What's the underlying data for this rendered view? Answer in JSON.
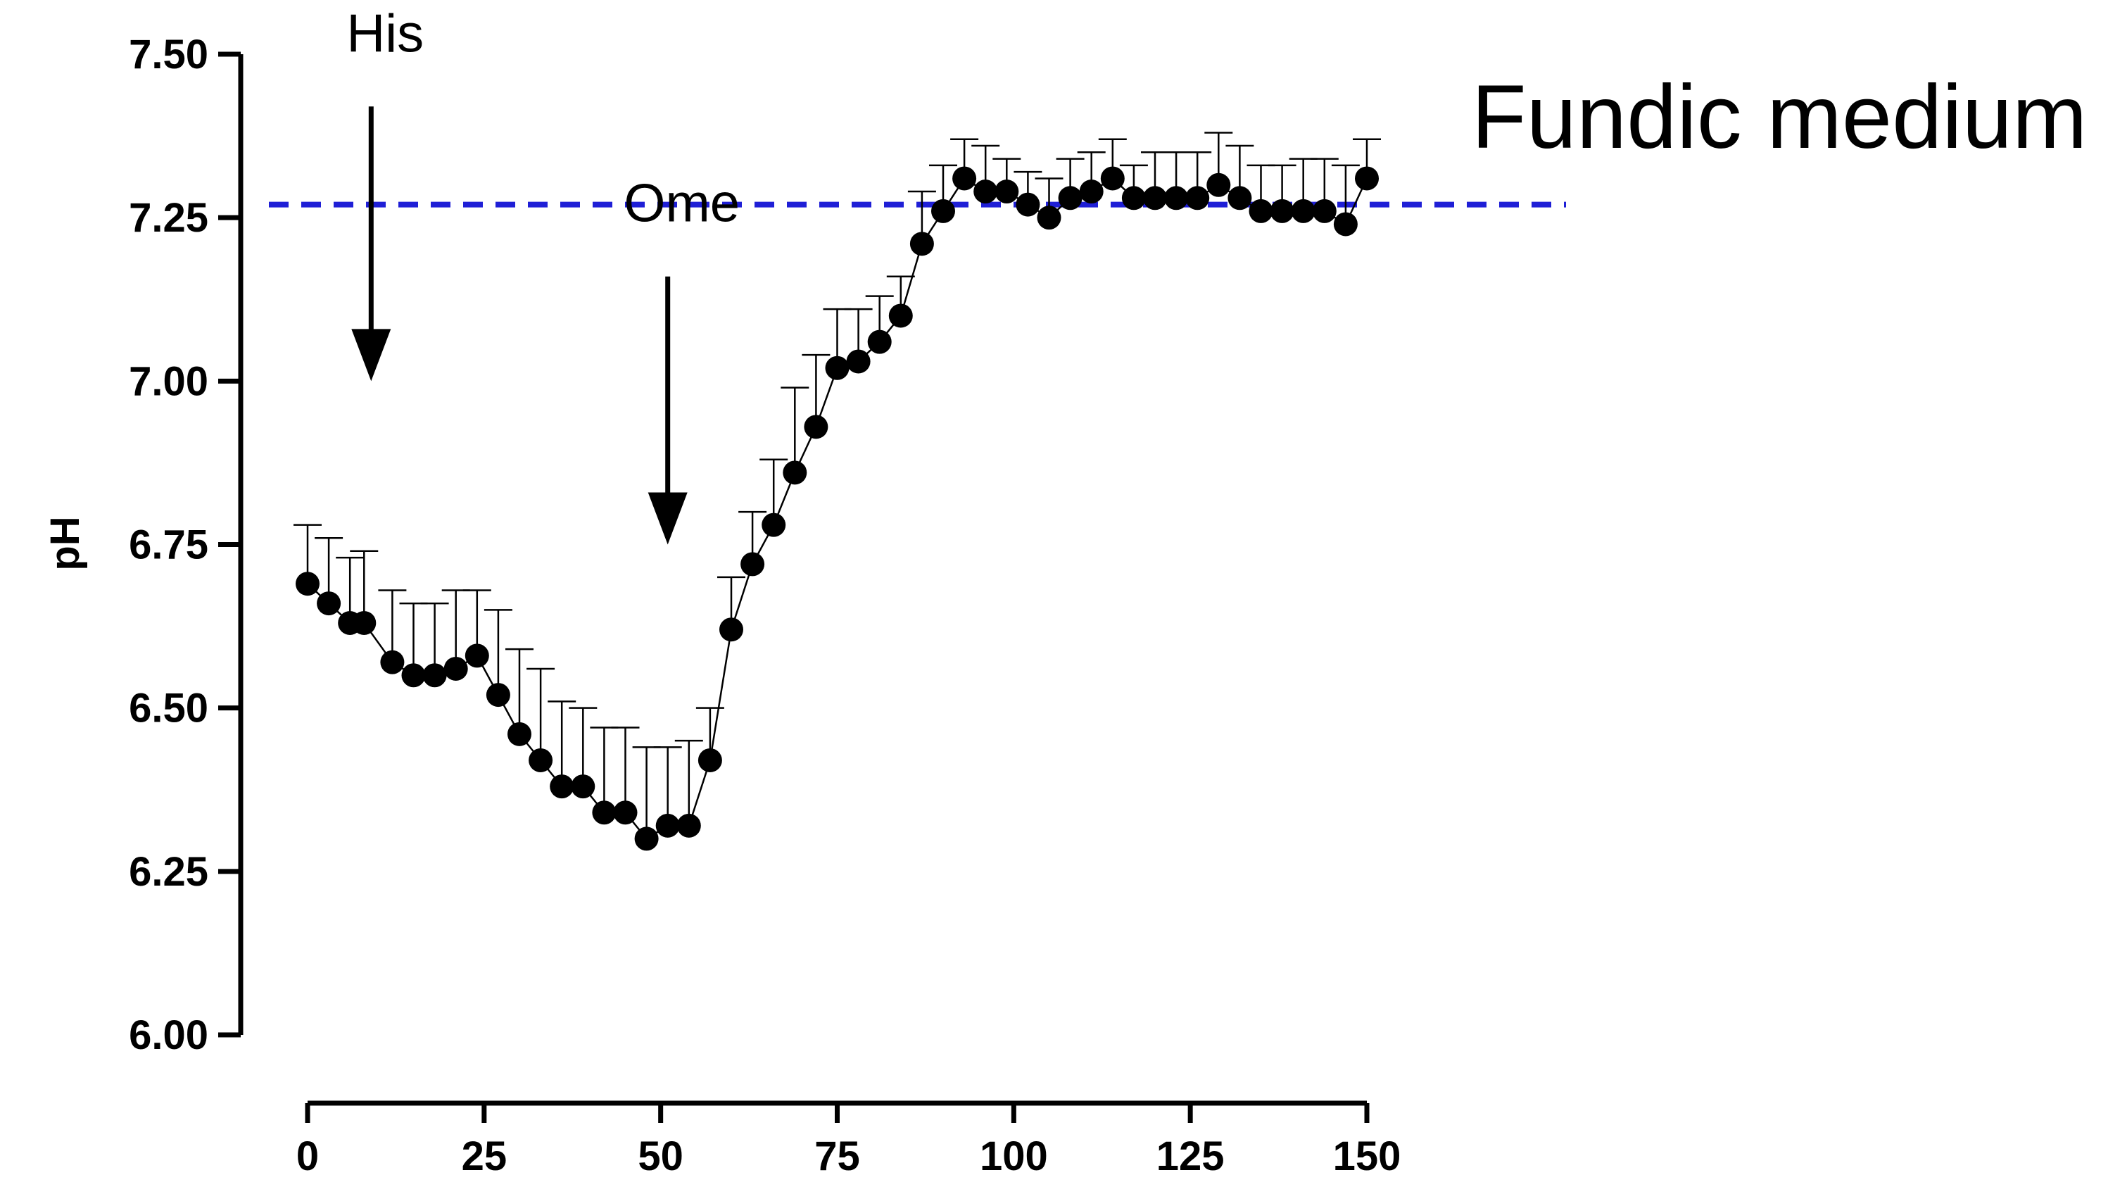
{
  "chart_data": {
    "type": "scatter",
    "title": "Fundic medium",
    "xlabel": "",
    "ylabel": "pH",
    "xlim": [
      0,
      150
    ],
    "ylim": [
      6.0,
      7.5
    ],
    "xticks": [
      0,
      25,
      50,
      75,
      100,
      125,
      150
    ],
    "xtick_labels": [
      "0",
      "25",
      "50",
      "75",
      "100",
      "125",
      "150"
    ],
    "yticks": [
      6.0,
      6.25,
      6.5,
      6.75,
      7.0,
      7.25,
      7.5
    ],
    "ytick_labels": [
      "6.00",
      "6.25",
      "6.50",
      "6.75",
      "7.00",
      "7.25",
      "7.50"
    ],
    "grid": false,
    "reference_line": {
      "y": 7.27,
      "style": "dashed",
      "color": "#1f1fd6"
    },
    "annotations": [
      {
        "text": "His",
        "x": 9,
        "arrow_from_y": 7.42,
        "arrow_to_y": 7.0
      },
      {
        "text": "Ome",
        "x": 51,
        "arrow_from_y": 7.16,
        "arrow_to_y": 6.75
      }
    ],
    "series": [
      {
        "marker": "circle",
        "color": "#000000",
        "x": [
          0,
          3,
          6,
          8,
          12,
          15,
          18,
          21,
          24,
          27,
          30,
          33,
          36,
          39,
          42,
          45,
          48,
          51,
          54,
          57,
          60,
          63,
          66,
          69,
          72,
          75,
          78,
          81,
          84,
          87,
          90,
          93,
          96,
          99,
          102,
          105,
          108,
          111,
          114,
          117,
          120,
          123,
          126,
          129,
          132,
          135,
          138,
          141,
          144,
          147,
          150
        ],
        "y": [
          6.69,
          6.66,
          6.63,
          6.63,
          6.57,
          6.55,
          6.55,
          6.56,
          6.58,
          6.52,
          6.46,
          6.42,
          6.38,
          6.38,
          6.34,
          6.34,
          6.3,
          6.32,
          6.32,
          6.42,
          6.62,
          6.72,
          6.78,
          6.86,
          6.93,
          7.02,
          7.03,
          7.06,
          7.1,
          7.21,
          7.26,
          7.31,
          7.29,
          7.29,
          7.27,
          7.25,
          7.28,
          7.29,
          7.31,
          7.28,
          7.28,
          7.28,
          7.28,
          7.3,
          7.28,
          7.26,
          7.26,
          7.26,
          7.26,
          7.24,
          7.31
        ],
        "error_upper": [
          0.09,
          0.1,
          0.1,
          0.11,
          0.11,
          0.11,
          0.11,
          0.12,
          0.1,
          0.13,
          0.13,
          0.14,
          0.13,
          0.12,
          0.13,
          0.13,
          0.14,
          0.12,
          0.13,
          0.08,
          0.08,
          0.08,
          0.1,
          0.13,
          0.11,
          0.09,
          0.08,
          0.07,
          0.06,
          0.08,
          0.07,
          0.06,
          0.07,
          0.05,
          0.05,
          0.06,
          0.06,
          0.06,
          0.06,
          0.05,
          0.07,
          0.07,
          0.07,
          0.08,
          0.08,
          0.07,
          0.07,
          0.08,
          0.08,
          0.09,
          0.06
        ]
      }
    ]
  }
}
